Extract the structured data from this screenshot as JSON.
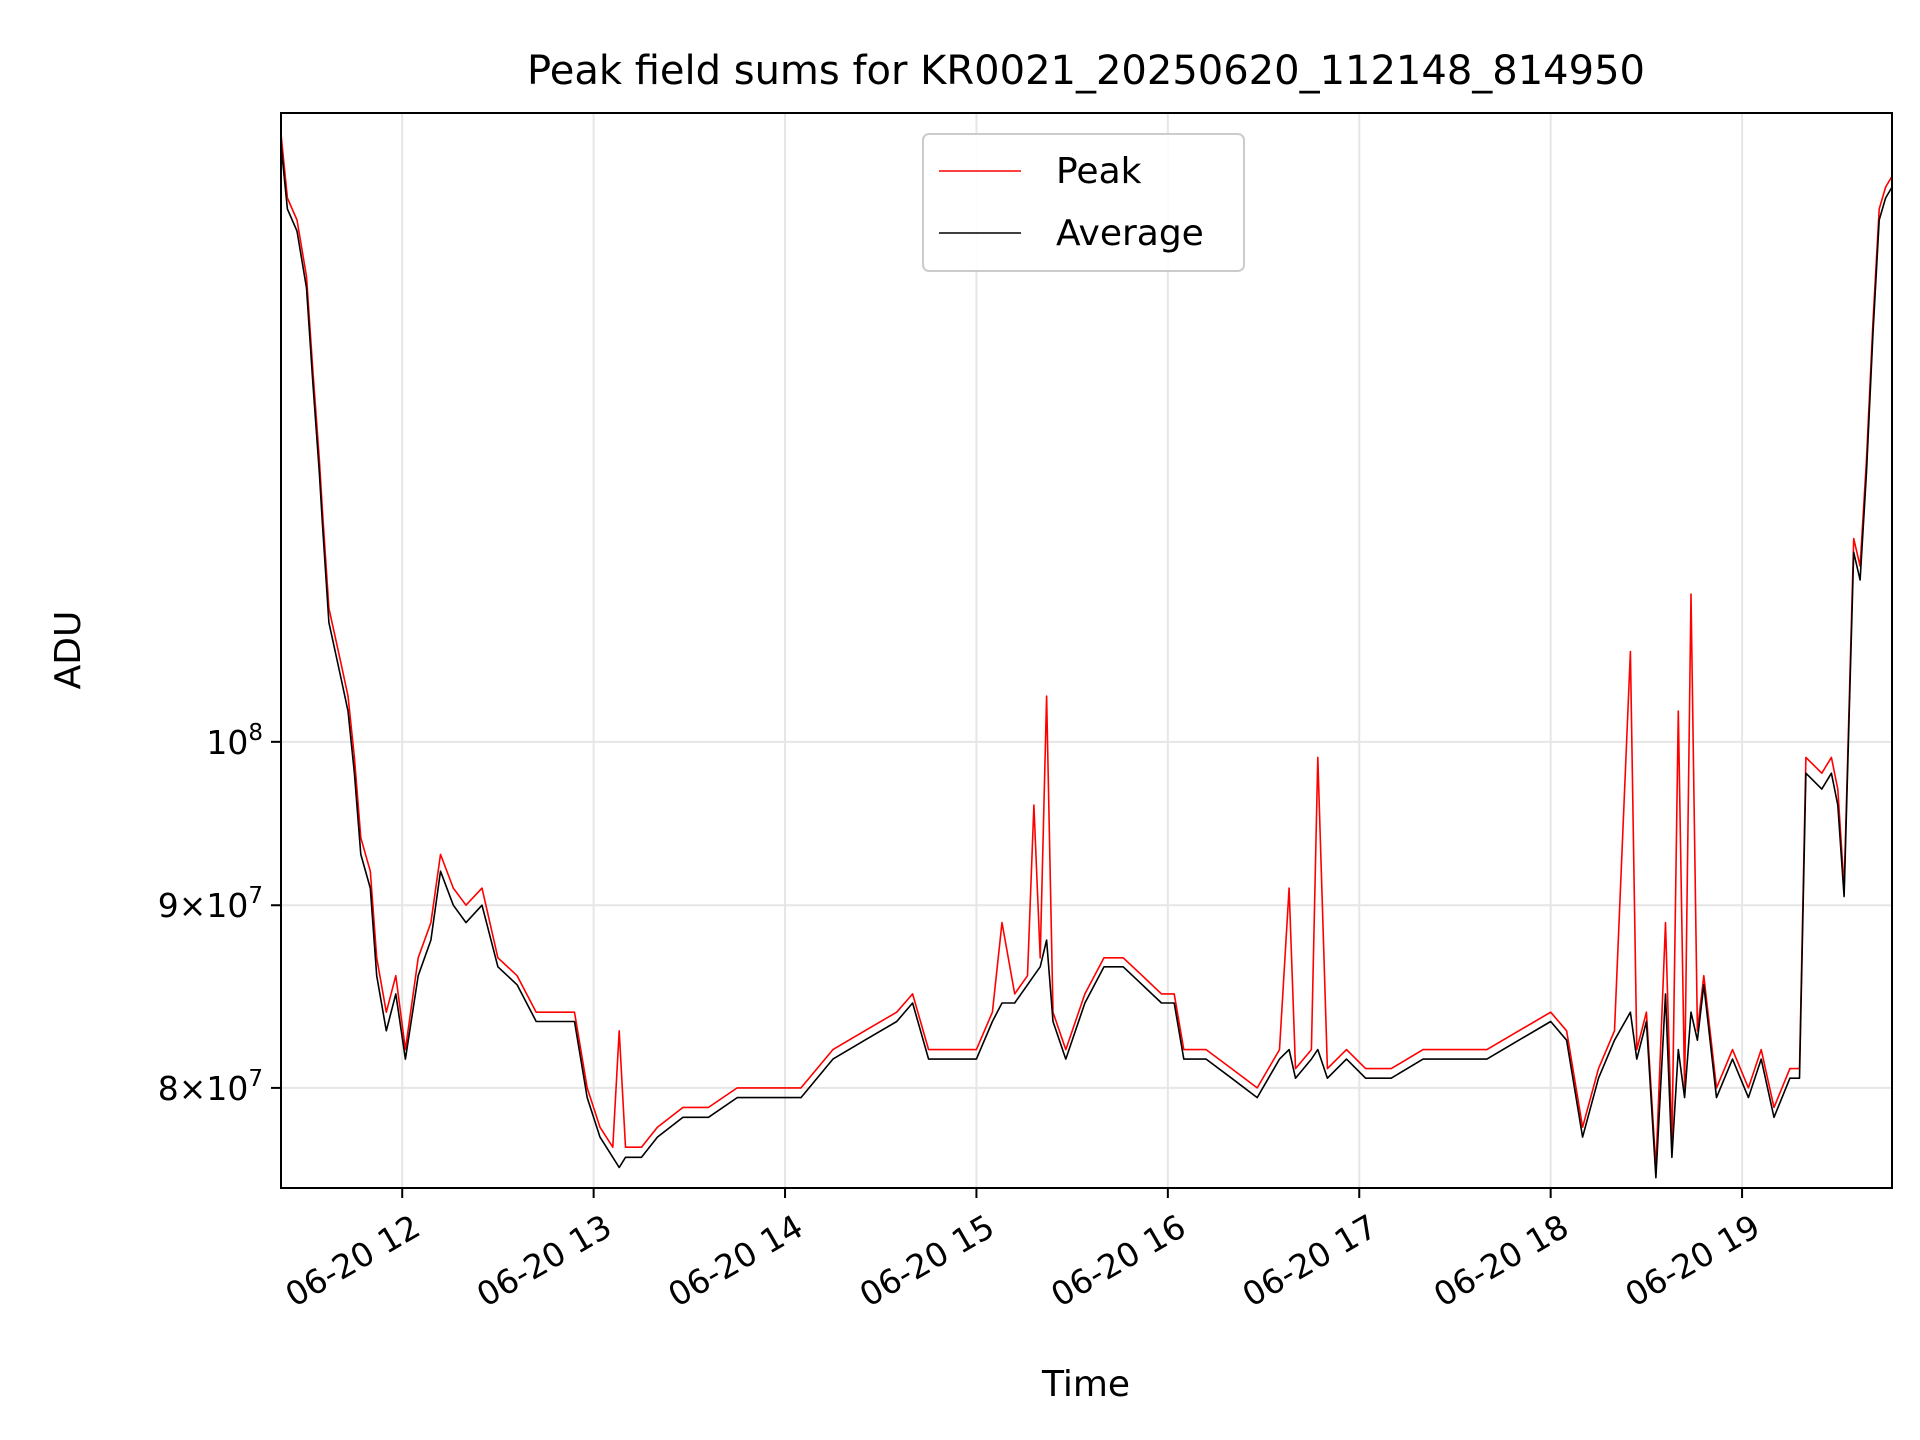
{
  "chart_data": {
    "type": "line",
    "title": "Peak field sums for KR0021_20250620_112148_814950",
    "xlabel": "Time",
    "ylabel": "ADU",
    "y_scale": "log",
    "ylim": [
      75000000,
      150000000
    ],
    "xlim": [
      "06-20 11:22",
      "06-20 19:47"
    ],
    "x_ticks": [
      "06-20 12",
      "06-20 13",
      "06-20 14",
      "06-20 15",
      "06-20 16",
      "06-20 17",
      "06-20 18",
      "06-20 19"
    ],
    "y_ticks": [
      {
        "base": "10",
        "exp": "8"
      },
      {
        "mant": "9",
        "base": "10",
        "exp": "7"
      },
      {
        "mant": "8",
        "base": "10",
        "exp": "7"
      }
    ],
    "grid": true,
    "legend_position": "upper-center",
    "series": [
      {
        "name": "Peak",
        "color": "#ff0000",
        "points": [
          [
            "06-20 11:22",
            148000000
          ],
          [
            "06-20 11:24",
            142000000
          ],
          [
            "06-20 11:27",
            140000000
          ],
          [
            "06-20 11:30",
            135000000
          ],
          [
            "06-20 11:32",
            127000000
          ],
          [
            "06-20 11:34",
            120000000
          ],
          [
            "06-20 11:35",
            116000000
          ],
          [
            "06-20 11:37",
            109000000
          ],
          [
            "06-20 11:39",
            107000000
          ],
          [
            "06-20 11:41",
            105000000
          ],
          [
            "06-20 11:43",
            103000000
          ],
          [
            "06-20 11:45",
            99000000
          ],
          [
            "06-20 11:47",
            94000000
          ],
          [
            "06-20 11:50",
            92000000
          ],
          [
            "06-20 11:52",
            87000000
          ],
          [
            "06-20 11:55",
            84000000
          ],
          [
            "06-20 11:58",
            86000000
          ],
          [
            "06-20 12:01",
            82000000
          ],
          [
            "06-20 12:05",
            87000000
          ],
          [
            "06-20 12:09",
            89000000
          ],
          [
            "06-20 12:12",
            93000000
          ],
          [
            "06-20 12:16",
            91000000
          ],
          [
            "06-20 12:20",
            90000000
          ],
          [
            "06-20 12:25",
            91000000
          ],
          [
            "06-20 12:30",
            87000000
          ],
          [
            "06-20 12:36",
            86000000
          ],
          [
            "06-20 12:42",
            84000000
          ],
          [
            "06-20 12:48",
            84000000
          ],
          [
            "06-20 12:54",
            84000000
          ],
          [
            "06-20 12:58",
            80000000
          ],
          [
            "06-20 13:02",
            78000000
          ],
          [
            "06-20 13:06",
            77000000
          ],
          [
            "06-20 13:08",
            83000000
          ],
          [
            "06-20 13:10",
            77000000
          ],
          [
            "06-20 13:15",
            77000000
          ],
          [
            "06-20 13:20",
            78000000
          ],
          [
            "06-20 13:28",
            79000000
          ],
          [
            "06-20 13:36",
            79000000
          ],
          [
            "06-20 13:45",
            80000000
          ],
          [
            "06-20 13:55",
            80000000
          ],
          [
            "06-20 14:05",
            80000000
          ],
          [
            "06-20 14:15",
            82000000
          ],
          [
            "06-20 14:25",
            83000000
          ],
          [
            "06-20 14:35",
            84000000
          ],
          [
            "06-20 14:40",
            85000000
          ],
          [
            "06-20 14:45",
            82000000
          ],
          [
            "06-20 14:52",
            82000000
          ],
          [
            "06-20 15:00",
            82000000
          ],
          [
            "06-20 15:05",
            84000000
          ],
          [
            "06-20 15:08",
            89000000
          ],
          [
            "06-20 15:12",
            85000000
          ],
          [
            "06-20 15:16",
            86000000
          ],
          [
            "06-20 15:18",
            96000000
          ],
          [
            "06-20 15:20",
            87000000
          ],
          [
            "06-20 15:22",
            103000000
          ],
          [
            "06-20 15:24",
            84000000
          ],
          [
            "06-20 15:28",
            82000000
          ],
          [
            "06-20 15:34",
            85000000
          ],
          [
            "06-20 15:40",
            87000000
          ],
          [
            "06-20 15:46",
            87000000
          ],
          [
            "06-20 15:52",
            86000000
          ],
          [
            "06-20 15:58",
            85000000
          ],
          [
            "06-20 16:02",
            85000000
          ],
          [
            "06-20 16:05",
            82000000
          ],
          [
            "06-20 16:12",
            82000000
          ],
          [
            "06-20 16:20",
            81000000
          ],
          [
            "06-20 16:28",
            80000000
          ],
          [
            "06-20 16:35",
            82000000
          ],
          [
            "06-20 16:38",
            91000000
          ],
          [
            "06-20 16:40",
            81000000
          ],
          [
            "06-20 16:45",
            82000000
          ],
          [
            "06-20 16:47",
            99000000
          ],
          [
            "06-20 16:50",
            81000000
          ],
          [
            "06-20 16:56",
            82000000
          ],
          [
            "06-20 17:02",
            81000000
          ],
          [
            "06-20 17:10",
            81000000
          ],
          [
            "06-20 17:20",
            82000000
          ],
          [
            "06-20 17:30",
            82000000
          ],
          [
            "06-20 17:40",
            82000000
          ],
          [
            "06-20 17:50",
            83000000
          ],
          [
            "06-20 18:00",
            84000000
          ],
          [
            "06-20 18:05",
            83000000
          ],
          [
            "06-20 18:10",
            78000000
          ],
          [
            "06-20 18:15",
            81000000
          ],
          [
            "06-20 18:20",
            83000000
          ],
          [
            "06-20 18:25",
            106000000
          ],
          [
            "06-20 18:27",
            82000000
          ],
          [
            "06-20 18:30",
            84000000
          ],
          [
            "06-20 18:33",
            76000000
          ],
          [
            "06-20 18:36",
            89000000
          ],
          [
            "06-20 18:38",
            77000000
          ],
          [
            "06-20 18:40",
            102000000
          ],
          [
            "06-20 18:42",
            80000000
          ],
          [
            "06-20 18:44",
            110000000
          ],
          [
            "06-20 18:46",
            83000000
          ],
          [
            "06-20 18:48",
            86000000
          ],
          [
            "06-20 18:52",
            80000000
          ],
          [
            "06-20 18:57",
            82000000
          ],
          [
            "06-20 19:02",
            80000000
          ],
          [
            "06-20 19:06",
            82000000
          ],
          [
            "06-20 19:10",
            79000000
          ],
          [
            "06-20 19:15",
            81000000
          ],
          [
            "06-20 19:18",
            81000000
          ],
          [
            "06-20 19:20",
            99000000
          ],
          [
            "06-20 19:25",
            98000000
          ],
          [
            "06-20 19:28",
            99000000
          ],
          [
            "06-20 19:30",
            97000000
          ],
          [
            "06-20 19:32",
            91000000
          ],
          [
            "06-20 19:35",
            114000000
          ],
          [
            "06-20 19:37",
            112000000
          ],
          [
            "06-20 19:39",
            120000000
          ],
          [
            "06-20 19:41",
            131000000
          ],
          [
            "06-20 19:43",
            141000000
          ],
          [
            "06-20 19:45",
            143000000
          ],
          [
            "06-20 19:47",
            144000000
          ]
        ]
      },
      {
        "name": "Average",
        "color": "#000000",
        "points": [
          [
            "06-20 11:22",
            147000000
          ],
          [
            "06-20 11:24",
            141000000
          ],
          [
            "06-20 11:27",
            139000000
          ],
          [
            "06-20 11:30",
            134000000
          ],
          [
            "06-20 11:32",
            126000000
          ],
          [
            "06-20 11:34",
            119000000
          ],
          [
            "06-20 11:35",
            115000000
          ],
          [
            "06-20 11:37",
            108000000
          ],
          [
            "06-20 11:39",
            106000000
          ],
          [
            "06-20 11:41",
            104000000
          ],
          [
            "06-20 11:43",
            102000000
          ],
          [
            "06-20 11:45",
            98000000
          ],
          [
            "06-20 11:47",
            93000000
          ],
          [
            "06-20 11:50",
            91000000
          ],
          [
            "06-20 11:52",
            86000000
          ],
          [
            "06-20 11:55",
            83000000
          ],
          [
            "06-20 11:58",
            85000000
          ],
          [
            "06-20 12:01",
            81500000
          ],
          [
            "06-20 12:05",
            86000000
          ],
          [
            "06-20 12:09",
            88000000
          ],
          [
            "06-20 12:12",
            92000000
          ],
          [
            "06-20 12:16",
            90000000
          ],
          [
            "06-20 12:20",
            89000000
          ],
          [
            "06-20 12:25",
            90000000
          ],
          [
            "06-20 12:30",
            86500000
          ],
          [
            "06-20 12:36",
            85500000
          ],
          [
            "06-20 12:42",
            83500000
          ],
          [
            "06-20 12:48",
            83500000
          ],
          [
            "06-20 12:54",
            83500000
          ],
          [
            "06-20 12:58",
            79500000
          ],
          [
            "06-20 13:02",
            77500000
          ],
          [
            "06-20 13:06",
            76500000
          ],
          [
            "06-20 13:08",
            76000000
          ],
          [
            "06-20 13:10",
            76500000
          ],
          [
            "06-20 13:15",
            76500000
          ],
          [
            "06-20 13:20",
            77500000
          ],
          [
            "06-20 13:28",
            78500000
          ],
          [
            "06-20 13:36",
            78500000
          ],
          [
            "06-20 13:45",
            79500000
          ],
          [
            "06-20 13:55",
            79500000
          ],
          [
            "06-20 14:05",
            79500000
          ],
          [
            "06-20 14:15",
            81500000
          ],
          [
            "06-20 14:25",
            82500000
          ],
          [
            "06-20 14:35",
            83500000
          ],
          [
            "06-20 14:40",
            84500000
          ],
          [
            "06-20 14:45",
            81500000
          ],
          [
            "06-20 14:52",
            81500000
          ],
          [
            "06-20 15:00",
            81500000
          ],
          [
            "06-20 15:05",
            83500000
          ],
          [
            "06-20 15:08",
            84500000
          ],
          [
            "06-20 15:12",
            84500000
          ],
          [
            "06-20 15:16",
            85500000
          ],
          [
            "06-20 15:18",
            86000000
          ],
          [
            "06-20 15:20",
            86500000
          ],
          [
            "06-20 15:22",
            88000000
          ],
          [
            "06-20 15:24",
            83500000
          ],
          [
            "06-20 15:28",
            81500000
          ],
          [
            "06-20 15:34",
            84500000
          ],
          [
            "06-20 15:40",
            86500000
          ],
          [
            "06-20 15:46",
            86500000
          ],
          [
            "06-20 15:52",
            85500000
          ],
          [
            "06-20 15:58",
            84500000
          ],
          [
            "06-20 16:02",
            84500000
          ],
          [
            "06-20 16:05",
            81500000
          ],
          [
            "06-20 16:12",
            81500000
          ],
          [
            "06-20 16:20",
            80500000
          ],
          [
            "06-20 16:28",
            79500000
          ],
          [
            "06-20 16:35",
            81500000
          ],
          [
            "06-20 16:38",
            82000000
          ],
          [
            "06-20 16:40",
            80500000
          ],
          [
            "06-20 16:45",
            81500000
          ],
          [
            "06-20 16:47",
            82000000
          ],
          [
            "06-20 16:50",
            80500000
          ],
          [
            "06-20 16:56",
            81500000
          ],
          [
            "06-20 17:02",
            80500000
          ],
          [
            "06-20 17:10",
            80500000
          ],
          [
            "06-20 17:20",
            81500000
          ],
          [
            "06-20 17:30",
            81500000
          ],
          [
            "06-20 17:40",
            81500000
          ],
          [
            "06-20 17:50",
            82500000
          ],
          [
            "06-20 18:00",
            83500000
          ],
          [
            "06-20 18:05",
            82500000
          ],
          [
            "06-20 18:10",
            77500000
          ],
          [
            "06-20 18:15",
            80500000
          ],
          [
            "06-20 18:20",
            82500000
          ],
          [
            "06-20 18:25",
            84000000
          ],
          [
            "06-20 18:27",
            81500000
          ],
          [
            "06-20 18:30",
            83500000
          ],
          [
            "06-20 18:33",
            75500000
          ],
          [
            "06-20 18:36",
            85000000
          ],
          [
            "06-20 18:38",
            76500000
          ],
          [
            "06-20 18:40",
            82000000
          ],
          [
            "06-20 18:42",
            79500000
          ],
          [
            "06-20 18:44",
            84000000
          ],
          [
            "06-20 18:46",
            82500000
          ],
          [
            "06-20 18:48",
            85500000
          ],
          [
            "06-20 18:52",
            79500000
          ],
          [
            "06-20 18:57",
            81500000
          ],
          [
            "06-20 19:02",
            79500000
          ],
          [
            "06-20 19:06",
            81500000
          ],
          [
            "06-20 19:10",
            78500000
          ],
          [
            "06-20 19:15",
            80500000
          ],
          [
            "06-20 19:18",
            80500000
          ],
          [
            "06-20 19:20",
            98000000
          ],
          [
            "06-20 19:25",
            97000000
          ],
          [
            "06-20 19:28",
            98000000
          ],
          [
            "06-20 19:30",
            96000000
          ],
          [
            "06-20 19:32",
            90500000
          ],
          [
            "06-20 19:35",
            113000000
          ],
          [
            "06-20 19:37",
            111000000
          ],
          [
            "06-20 19:39",
            119000000
          ],
          [
            "06-20 19:41",
            130000000
          ],
          [
            "06-20 19:43",
            140000000
          ],
          [
            "06-20 19:45",
            142000000
          ],
          [
            "06-20 19:47",
            143000000
          ]
        ]
      }
    ]
  }
}
